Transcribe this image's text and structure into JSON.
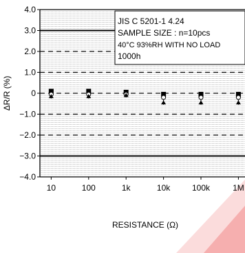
{
  "chart_data": {
    "type": "scatter",
    "xlabel": "RESISTANCE (Ω)",
    "ylabel": "ΔR/R (%)",
    "x_scale": "log",
    "x_categories": [
      "10",
      "100",
      "1k",
      "10k",
      "100k",
      "1M"
    ],
    "x_values": [
      10,
      100,
      1000,
      10000,
      100000,
      1000000
    ],
    "xlim": [
      5,
      1500000
    ],
    "ylim": [
      -4.0,
      4.0
    ],
    "y_ticks": [
      4.0,
      3.0,
      2.0,
      1.0,
      0,
      -1.0,
      -2.0,
      -3.0,
      -4.0
    ],
    "y_tick_labels": [
      "4.0",
      "3.0",
      "2.0",
      "1.0",
      "0",
      "−1.0",
      "−2.0",
      "−3.0",
      "−4.0"
    ],
    "grid": "horizontal dense",
    "limit_lines": [
      3.0,
      -3.0
    ],
    "dashed_lines": [
      2.0,
      1.0,
      0,
      -1.0,
      -2.0
    ],
    "legend_box": {
      "lines": [
        "JIS C 5201-1 4.24",
        "SAMPLE SIZE : n=10pcs",
        "40°C 93%RH WITH NO LOAD",
        "1000h"
      ],
      "placement": "top-right"
    },
    "series": [
      {
        "marker": "filled-square",
        "values": [
          0.1,
          0.1,
          0.05,
          -0.05,
          -0.05,
          -0.05
        ]
      },
      {
        "marker": "open-circle",
        "values": [
          -0.05,
          -0.05,
          -0.05,
          -0.2,
          -0.2,
          -0.2
        ]
      },
      {
        "marker": "filled-triangle",
        "values": [
          -0.15,
          -0.15,
          -0.1,
          -0.45,
          -0.45,
          -0.45
        ]
      }
    ],
    "error_bars": {
      "lower": [
        -0.25,
        -0.25,
        -0.2,
        -0.55,
        -0.55,
        -0.55
      ],
      "upper": [
        0.2,
        0.2,
        0.15,
        0.05,
        0.05,
        0.05
      ]
    },
    "colors": {
      "axis": "#000000",
      "grid": "#444444",
      "watermark": "#e83e3e"
    }
  }
}
